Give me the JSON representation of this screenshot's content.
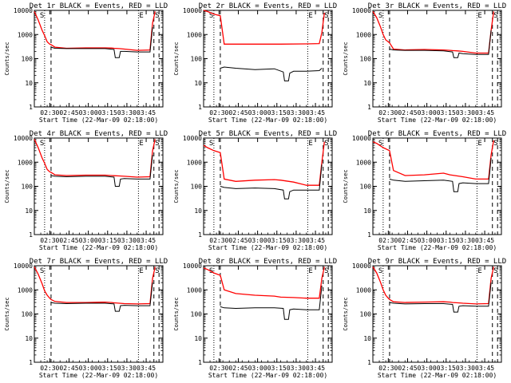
{
  "figure": {
    "common": {
      "ylabel": "Counts/sec",
      "xlabel": "Start Time (22-Mar-09 02:18:00)",
      "x_tick_labels": [
        "02:30",
        "02:45",
        "03:00",
        "03:15",
        "03:30",
        "03:45"
      ],
      "x_tick_minutes": [
        12,
        27,
        42,
        57,
        72,
        87
      ],
      "xlim_minutes": [
        0,
        100
      ],
      "y_tick_labels": [
        "1",
        "10",
        "100",
        "1000",
        "10000"
      ],
      "ylim": [
        1,
        10000
      ],
      "y_scale": "log",
      "event_color": "#000000",
      "lld_color": "#ff0000",
      "markers_dotted": [
        8,
        81
      ],
      "markers_dashed": [
        13,
        93,
        97
      ]
    },
    "panels": [
      {
        "title": "Det 1r BLACK = Events, RED = LLD",
        "corner_left": "S",
        "corner_right": "E",
        "corner_far": "S"
      },
      {
        "title": "Det 2r BLACK = Events, RED = LLD",
        "corner_left": "S",
        "corner_right": "E",
        "corner_far": "S"
      },
      {
        "title": "Det 3r BLACK = Events, RED = LLD",
        "corner_left": "S",
        "corner_right": "E",
        "corner_far": "S"
      },
      {
        "title": "Det 4r BLACK = Events, RED = LLD",
        "corner_left": "S",
        "corner_right": "E",
        "corner_far": "S"
      },
      {
        "title": "Det 5r BLACK = Events, RED = LLD",
        "corner_left": "S",
        "corner_right": "E",
        "corner_far": "S"
      },
      {
        "title": "Det 6r BLACK = Events, RED = LLD",
        "corner_left": "S",
        "corner_right": "E",
        "corner_far": "S"
      },
      {
        "title": "Det 7r BLACK = Events, RED = LLD",
        "corner_left": "S",
        "corner_right": "E",
        "corner_far": "S"
      },
      {
        "title": "Det 8r BLACK = Events, RED = LLD",
        "corner_left": "S",
        "corner_right": "E",
        "corner_far": "S"
      },
      {
        "title": "Det 9r BLACK = Events, RED = LLD",
        "corner_left": "S",
        "corner_right": "E",
        "corner_far": "S"
      }
    ]
  },
  "chart_data": [
    {
      "type": "line",
      "title": "Det 1r BLACK = Events, RED = LLD",
      "xlabel": "Start Time (22-Mar-09 02:18:00)",
      "ylabel": "Counts/sec",
      "ylim": [
        1,
        10000
      ],
      "y_scale": "log",
      "series": [
        {
          "x": [
            0,
            3,
            6,
            8,
            10,
            12,
            13,
            16,
            25,
            40,
            55,
            60,
            62,
            66,
            70,
            80,
            90,
            92,
            94
          ],
          "values": [
            9000,
            4000,
            1500,
            900,
            500,
            400,
            380,
            300,
            270,
            280,
            280,
            275,
            270,
            260,
            250,
            220,
            230,
            3000,
            9000
          ]
        },
        {
          "x": [
            13,
            16,
            25,
            40,
            55,
            62,
            63,
            66,
            67,
            70,
            80,
            90,
            92
          ],
          "values": [
            300,
            270,
            260,
            260,
            260,
            240,
            110,
            110,
            200,
            200,
            190,
            190,
            2000
          ]
        }
      ]
    },
    {
      "type": "line",
      "title": "Det 2r BLACK = Events, RED = LLD",
      "xlabel": "Start Time (22-Mar-09 02:18:00)",
      "ylabel": "Counts/sec",
      "ylim": [
        1,
        10000
      ],
      "y_scale": "log",
      "series": [
        {
          "x": [
            0,
            3,
            8,
            13,
            16,
            40,
            60,
            80,
            90,
            92,
            94
          ],
          "values": [
            10000,
            9000,
            7000,
            6000,
            400,
            400,
            400,
            410,
            420,
            1200,
            8000
          ]
        },
        {
          "x": [
            13,
            16,
            25,
            40,
            55,
            62,
            63,
            66,
            67,
            70,
            80,
            90,
            92
          ],
          "values": [
            40,
            45,
            40,
            35,
            38,
            28,
            12,
            12,
            25,
            30,
            30,
            32,
            40
          ]
        }
      ]
    },
    {
      "type": "line",
      "title": "Det 3r BLACK = Events, RED = LLD",
      "xlabel": "Start Time (22-Mar-09 02:18:00)",
      "ylabel": "Counts/sec",
      "ylim": [
        1,
        10000
      ],
      "y_scale": "log",
      "series": [
        {
          "x": [
            0,
            3,
            6,
            8,
            10,
            12,
            13,
            16,
            25,
            40,
            55,
            60,
            62,
            66,
            70,
            80,
            90,
            92,
            94
          ],
          "values": [
            9000,
            5000,
            2000,
            1000,
            600,
            500,
            450,
            250,
            230,
            240,
            230,
            220,
            215,
            210,
            200,
            170,
            170,
            1500,
            9000
          ]
        },
        {
          "x": [
            13,
            16,
            25,
            40,
            55,
            62,
            63,
            66,
            67,
            70,
            80,
            90,
            92
          ],
          "values": [
            250,
            230,
            220,
            220,
            210,
            190,
            110,
            110,
            170,
            160,
            150,
            150,
            1500
          ]
        }
      ]
    },
    {
      "type": "line",
      "title": "Det 4r BLACK = Events, RED = LLD",
      "xlabel": "Start Time (22-Mar-09 02:18:00)",
      "ylabel": "Counts/sec",
      "ylim": [
        1,
        10000
      ],
      "y_scale": "log",
      "series": [
        {
          "x": [
            0,
            3,
            6,
            8,
            10,
            12,
            13,
            16,
            25,
            40,
            55,
            60,
            62,
            66,
            70,
            80,
            90,
            92,
            94
          ],
          "values": [
            9000,
            4000,
            1500,
            900,
            500,
            400,
            380,
            300,
            280,
            290,
            290,
            280,
            275,
            270,
            260,
            240,
            250,
            3000,
            9000
          ]
        },
        {
          "x": [
            13,
            16,
            25,
            40,
            55,
            62,
            63,
            66,
            67,
            70,
            80,
            90,
            92
          ],
          "values": [
            280,
            260,
            250,
            260,
            260,
            240,
            100,
            100,
            200,
            210,
            200,
            200,
            2000
          ]
        }
      ]
    },
    {
      "type": "line",
      "title": "Det 5r BLACK = Events, RED = LLD",
      "xlabel": "Start Time (22-Mar-09 02:18:00)",
      "ylabel": "Counts/sec",
      "ylim": [
        1,
        10000
      ],
      "y_scale": "log",
      "series": [
        {
          "x": [
            0,
            3,
            8,
            13,
            16,
            25,
            40,
            55,
            60,
            70,
            80,
            90,
            92,
            94
          ],
          "values": [
            5000,
            4000,
            3000,
            2500,
            200,
            160,
            180,
            190,
            180,
            150,
            110,
            110,
            1000,
            7000
          ]
        },
        {
          "x": [
            13,
            16,
            25,
            40,
            55,
            62,
            63,
            66,
            67,
            70,
            80,
            90,
            92
          ],
          "values": [
            100,
            90,
            80,
            85,
            80,
            70,
            30,
            30,
            60,
            70,
            70,
            70,
            800
          ]
        }
      ]
    },
    {
      "type": "line",
      "title": "Det 6r BLACK = Events, RED = LLD",
      "xlabel": "Start Time (22-Mar-09 02:18:00)",
      "ylabel": "Counts/sec",
      "ylim": [
        1,
        10000
      ],
      "y_scale": "log",
      "series": [
        {
          "x": [
            0,
            3,
            8,
            13,
            16,
            25,
            40,
            55,
            60,
            70,
            80,
            90,
            92,
            94
          ],
          "values": [
            7000,
            6000,
            4000,
            3000,
            450,
            280,
            300,
            350,
            300,
            250,
            200,
            200,
            2000,
            8000
          ]
        },
        {
          "x": [
            13,
            16,
            25,
            40,
            55,
            62,
            63,
            66,
            67,
            70,
            80,
            90,
            92
          ],
          "values": [
            200,
            180,
            160,
            170,
            180,
            160,
            60,
            60,
            130,
            140,
            130,
            130,
            1500
          ]
        }
      ]
    },
    {
      "type": "line",
      "title": "Det 7r BLACK = Events, RED = LLD",
      "xlabel": "Start Time (22-Mar-09 02:18:00)",
      "ylabel": "Counts/sec",
      "ylim": [
        1,
        10000
      ],
      "y_scale": "log",
      "series": [
        {
          "x": [
            0,
            3,
            6,
            8,
            10,
            12,
            13,
            16,
            25,
            40,
            55,
            60,
            62,
            66,
            70,
            80,
            90,
            92,
            94
          ],
          "values": [
            9000,
            4500,
            1800,
            900,
            600,
            450,
            400,
            330,
            300,
            300,
            310,
            300,
            290,
            280,
            270,
            260,
            270,
            3000,
            9000
          ]
        },
        {
          "x": [
            13,
            16,
            25,
            40,
            55,
            62,
            63,
            66,
            67,
            70,
            80,
            90,
            92
          ],
          "values": [
            300,
            280,
            270,
            280,
            280,
            260,
            130,
            130,
            220,
            230,
            220,
            220,
            2000
          ]
        }
      ]
    },
    {
      "type": "line",
      "title": "Det 8r BLACK = Events, RED = LLD",
      "xlabel": "Start Time (22-Mar-09 02:18:00)",
      "ylabel": "Counts/sec",
      "ylim": [
        1,
        10000
      ],
      "y_scale": "log",
      "series": [
        {
          "x": [
            0,
            3,
            8,
            13,
            16,
            25,
            40,
            55,
            60,
            70,
            80,
            90,
            92,
            94
          ],
          "values": [
            8000,
            7000,
            5000,
            4000,
            1000,
            700,
            600,
            550,
            500,
            480,
            450,
            450,
            3000,
            9000
          ]
        },
        {
          "x": [
            13,
            16,
            25,
            40,
            55,
            62,
            63,
            66,
            67,
            70,
            80,
            90,
            92
          ],
          "values": [
            200,
            180,
            170,
            180,
            180,
            170,
            60,
            60,
            150,
            160,
            150,
            150,
            1500
          ]
        }
      ]
    },
    {
      "type": "line",
      "title": "Det 9r BLACK = Events, RED = LLD",
      "xlabel": "Start Time (22-Mar-09 02:18:00)",
      "ylabel": "Counts/sec",
      "ylim": [
        1,
        10000
      ],
      "y_scale": "log",
      "series": [
        {
          "x": [
            0,
            3,
            6,
            8,
            10,
            12,
            13,
            16,
            25,
            40,
            55,
            60,
            62,
            66,
            70,
            80,
            90,
            92,
            94
          ],
          "values": [
            9000,
            5000,
            2000,
            1000,
            600,
            450,
            400,
            320,
            300,
            310,
            320,
            310,
            300,
            290,
            280,
            260,
            270,
            3000,
            9000
          ]
        },
        {
          "x": [
            13,
            16,
            25,
            40,
            55,
            62,
            63,
            66,
            67,
            70,
            80,
            90,
            92
          ],
          "values": [
            300,
            280,
            260,
            270,
            270,
            250,
            120,
            120,
            210,
            220,
            210,
            210,
            2000
          ]
        }
      ]
    }
  ]
}
